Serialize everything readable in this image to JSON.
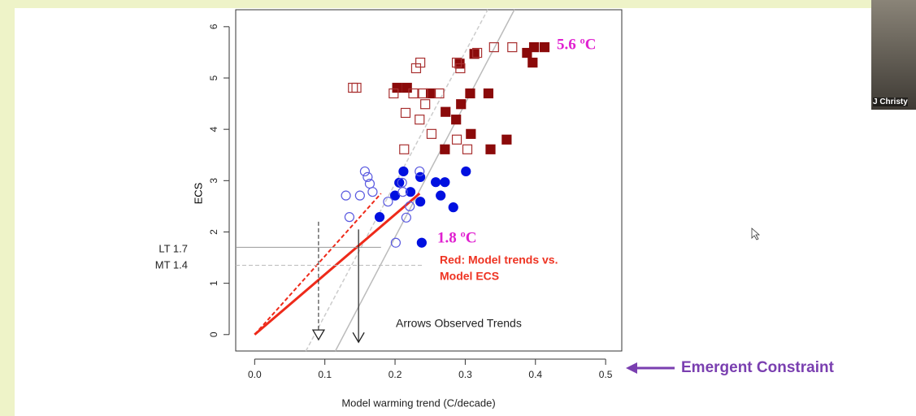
{
  "chart_data": {
    "type": "scatter",
    "x_label": "Model warming trend (C/decade)",
    "y_label": "ECS",
    "xlim": [
      -0.027,
      0.523
    ],
    "ylim": [
      -0.32,
      6.33
    ],
    "xticks": [
      {
        "value": 0,
        "label": "0.0"
      },
      0.1,
      0.2,
      0.3,
      0.4,
      0.5
    ],
    "yticks": [
      0,
      1,
      2,
      3,
      4,
      5,
      6
    ],
    "annotations": [
      "5.6 ºC",
      "1.8 ºC",
      "Red: Model trends vs.",
      "Model ECS",
      "Arrows Observed Trends",
      "LT 1.7",
      "MT 1.4",
      "Emergent Constraint"
    ],
    "series": [
      {
        "marker": "square",
        "filled": true,
        "color": "#8b0a0a",
        "x": [
          0.413,
          0.398,
          0.388,
          0.396,
          0.313,
          0.292,
          0.333,
          0.307,
          0.251,
          0.203,
          0.217,
          0.294,
          0.272,
          0.287,
          0.308,
          0.359,
          0.271,
          0.336
        ],
        "values": [
          5.6,
          5.6,
          5.49,
          5.3,
          5.47,
          5.28,
          4.7,
          4.7,
          4.7,
          4.81,
          4.81,
          4.49,
          4.34,
          4.19,
          3.91,
          3.8,
          3.61,
          3.61
        ]
      },
      {
        "marker": "square",
        "filled": false,
        "color": "#a83030",
        "x": [
          0.14,
          0.145,
          0.236,
          0.23,
          0.288,
          0.293,
          0.317,
          0.341,
          0.367,
          0.198,
          0.226,
          0.24,
          0.263,
          0.243,
          0.215,
          0.235,
          0.252,
          0.213,
          0.303,
          0.288
        ],
        "values": [
          4.81,
          4.81,
          5.3,
          5.19,
          5.3,
          5.19,
          5.49,
          5.6,
          5.6,
          4.7,
          4.7,
          4.7,
          4.7,
          4.49,
          4.32,
          4.19,
          3.91,
          3.61,
          3.61,
          3.8
        ]
      },
      {
        "marker": "circle",
        "filled": true,
        "color": "#0010e0",
        "x": [
          0.212,
          0.2,
          0.206,
          0.222,
          0.236,
          0.236,
          0.258,
          0.271,
          0.301,
          0.265,
          0.283,
          0.178,
          0.238
        ],
        "values": [
          3.18,
          2.71,
          2.96,
          2.78,
          3.07,
          2.59,
          2.97,
          2.97,
          3.18,
          2.71,
          2.48,
          2.29,
          1.79
        ]
      },
      {
        "marker": "circle",
        "filled": false,
        "color": "#5a5ae0",
        "x": [
          0.157,
          0.161,
          0.164,
          0.168,
          0.13,
          0.15,
          0.135,
          0.19,
          0.21,
          0.211,
          0.216,
          0.221,
          0.235,
          0.201
        ],
        "values": [
          3.18,
          3.07,
          2.94,
          2.78,
          2.71,
          2.71,
          2.29,
          2.59,
          2.96,
          2.78,
          2.28,
          2.5,
          3.18,
          1.79
        ]
      }
    ],
    "lines": [
      {
        "x": [
          0.115,
          0.37
        ],
        "values": [
          -0.32,
          6.33
        ],
        "color": "#bbbbbb",
        "dash": false,
        "width": 1.5
      },
      {
        "x": [
          0.073,
          0.332
        ],
        "values": [
          -0.32,
          6.33
        ],
        "color": "#cccccc",
        "dash": true,
        "width": 1.5
      },
      {
        "x": [
          0,
          0.235
        ],
        "values": [
          0,
          2.75
        ],
        "color": "#ee2a1a",
        "dash": false,
        "width": 3
      },
      {
        "x": [
          0,
          0.18
        ],
        "values": [
          0,
          2.75
        ],
        "color": "#ee2a1a",
        "dash": true,
        "width": 2
      },
      {
        "x": [
          -0.027,
          0.18
        ],
        "values": [
          1.7,
          1.7
        ],
        "color": "#999999",
        "dash": false,
        "width": 1
      },
      {
        "x": [
          -0.027,
          0.24
        ],
        "values": [
          1.35,
          1.35
        ],
        "color": "#bbbbbb",
        "dash": true,
        "width": 1
      },
      {
        "x": [
          0.091,
          0.091
        ],
        "values": [
          2.2,
          -0.1
        ],
        "color": "#222222",
        "dash": true,
        "width": 1,
        "arrow": "open"
      },
      {
        "x": [
          0.148,
          0.148
        ],
        "values": [
          2.05,
          -0.15
        ],
        "color": "#222222",
        "dash": false,
        "width": 1.2,
        "arrow": "closed"
      }
    ]
  },
  "participant": "J Christy"
}
